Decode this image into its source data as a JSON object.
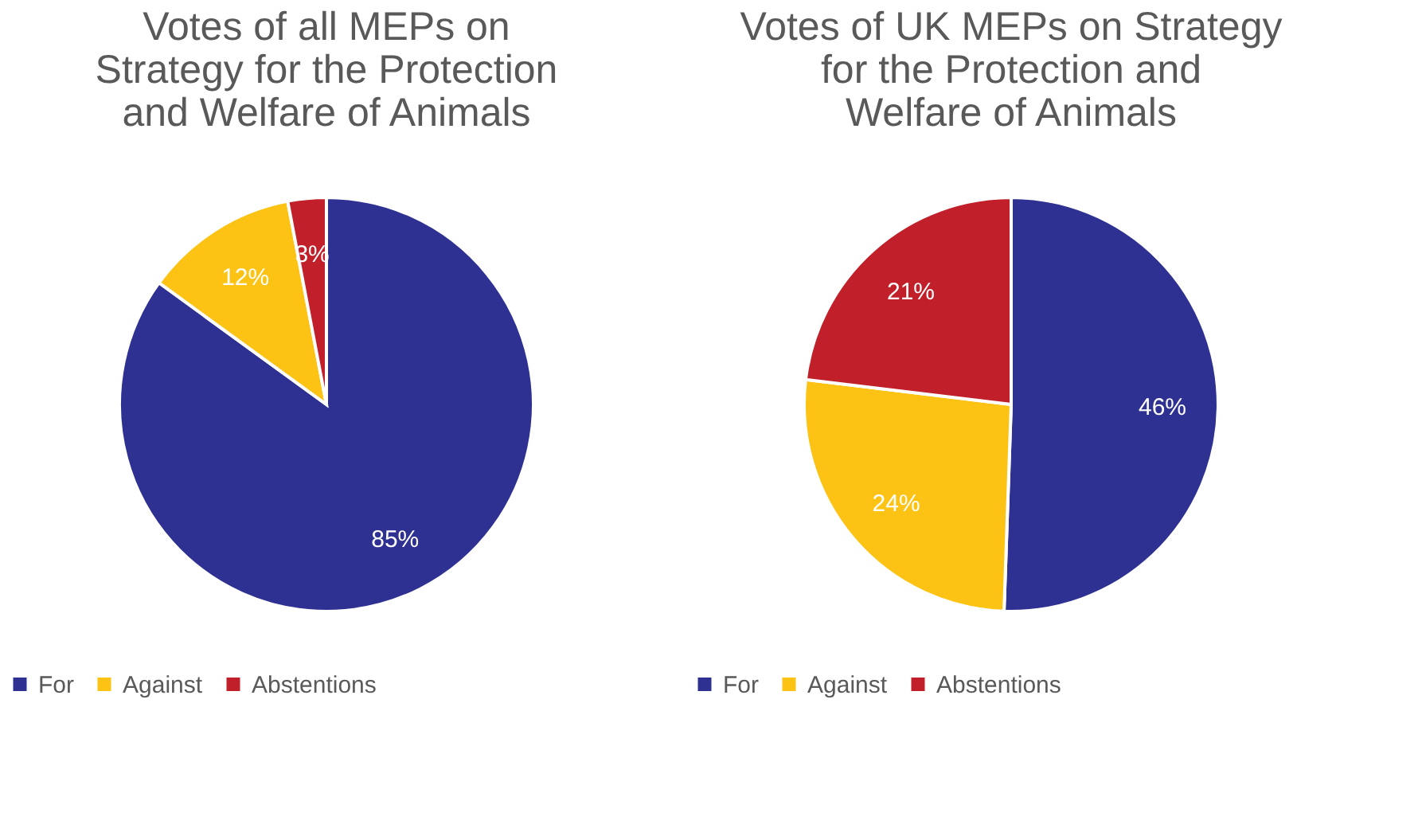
{
  "chart_data": [
    {
      "type": "pie",
      "title": "Votes of all MEPs on Strategy for the Protection and Welfare of Animals",
      "categories": [
        "For",
        "Against",
        "Abstentions"
      ],
      "values": [
        85,
        12,
        3
      ],
      "value_labels": [
        "85%",
        "12%",
        "3%"
      ],
      "colors": [
        "#2e3192",
        "#fcc314",
        "#c1202a"
      ],
      "legend": "bottom"
    },
    {
      "type": "pie",
      "title": "Votes of UK MEPs on Strategy for the Protection and Welfare of Animals",
      "categories": [
        "For",
        "Against",
        "Abstentions"
      ],
      "values": [
        46,
        24,
        21
      ],
      "value_labels": [
        "46%",
        "24%",
        "21%"
      ],
      "colors": [
        "#2e3192",
        "#fcc314",
        "#c1202a"
      ],
      "legend": "bottom"
    }
  ]
}
